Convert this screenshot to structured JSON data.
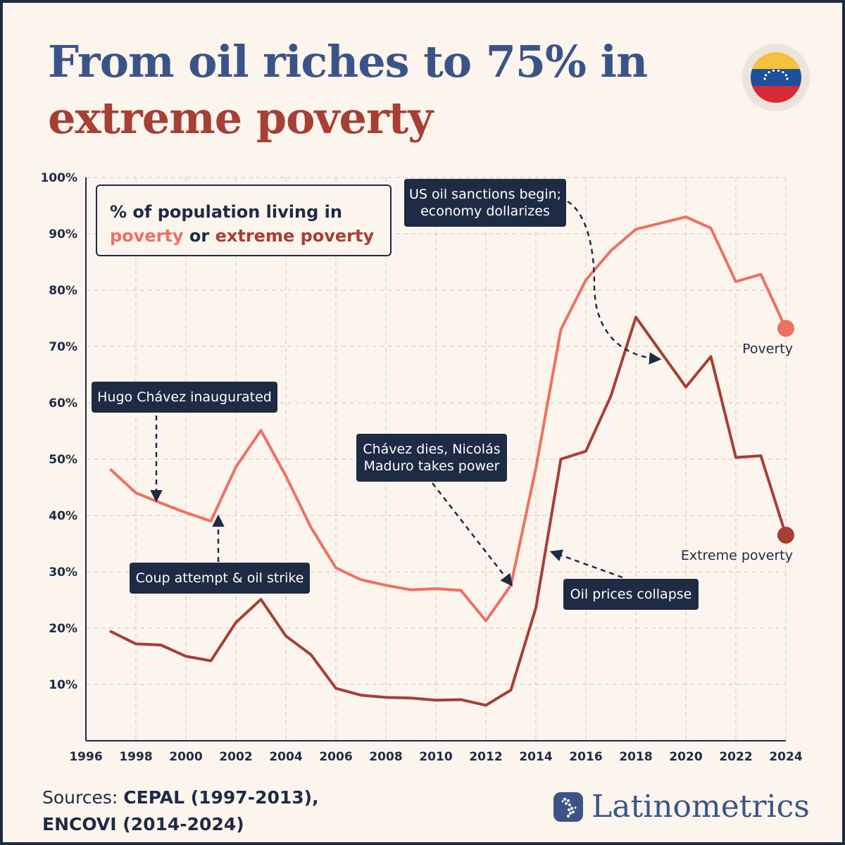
{
  "title_line1": "From oil riches to 75% in",
  "title_line2": "extreme poverty",
  "legend": {
    "line1": "% of population living in",
    "poverty": "poverty",
    "or": " or ",
    "extreme": "extreme poverty"
  },
  "annotations": {
    "chavez": "Hugo Chávez inaugurated",
    "coup": "Coup attempt & oil strike",
    "maduro_1": "Chávez dies, Nicolás",
    "maduro_2": "Maduro takes power",
    "sanctions_1": "US oil sanctions begin;",
    "sanctions_2": "economy dollarizes",
    "oil": "Oil prices collapse"
  },
  "sources": {
    "prefix": "Sources: ",
    "s1": "CEPAL (1997-2013),",
    "s2": "ENCOVI (2014-2024)"
  },
  "brand": "Latinometrics",
  "colors": {
    "poverty": "#ec7163",
    "extreme": "#a63f35",
    "navy": "#1f2a44",
    "grid": "#d9cfc6"
  },
  "chart_data": {
    "type": "line",
    "xlim": [
      1996,
      2024
    ],
    "ylim": [
      0,
      100
    ],
    "x_ticks": [
      1996,
      1998,
      2000,
      2002,
      2004,
      2006,
      2008,
      2010,
      2012,
      2014,
      2016,
      2018,
      2020,
      2022,
      2024
    ],
    "y_ticks": [
      10,
      20,
      30,
      40,
      50,
      60,
      70,
      80,
      90,
      100
    ],
    "y_tick_suffix": "%",
    "grid": true,
    "series": [
      {
        "name": "Poverty",
        "color": "#ec7163",
        "x": [
          1997,
          1998,
          1999,
          2000,
          2001,
          2002,
          2003,
          2004,
          2005,
          2006,
          2007,
          2008,
          2009,
          2010,
          2011,
          2012,
          2013,
          2014,
          2015,
          2016,
          2017,
          2018,
          2019,
          2020,
          2021,
          2022,
          2023,
          2024
        ],
        "values": [
          48.1,
          44.0,
          42.2,
          40.5,
          39.0,
          48.6,
          55.1,
          47.0,
          37.9,
          30.7,
          28.6,
          27.6,
          26.8,
          27.0,
          26.7,
          21.3,
          27.6,
          48.4,
          73.0,
          81.8,
          87.0,
          90.8,
          91.9,
          93.0,
          91.0,
          81.5,
          82.8,
          73.2
        ]
      },
      {
        "name": "Extreme poverty",
        "color": "#a63f35",
        "x": [
          1997,
          1998,
          1999,
          2000,
          2001,
          2002,
          2003,
          2004,
          2005,
          2006,
          2007,
          2008,
          2009,
          2010,
          2011,
          2012,
          2013,
          2014,
          2015,
          2016,
          2017,
          2018,
          2019,
          2020,
          2021,
          2022,
          2023,
          2024
        ],
        "values": [
          19.4,
          17.2,
          17.0,
          15.0,
          14.2,
          21.0,
          25.1,
          18.6,
          15.3,
          9.3,
          8.1,
          7.7,
          7.6,
          7.2,
          7.3,
          6.3,
          9.0,
          23.6,
          50.0,
          51.4,
          61.2,
          75.2,
          69.0,
          62.8,
          68.2,
          50.3,
          50.6,
          36.5
        ]
      }
    ]
  }
}
